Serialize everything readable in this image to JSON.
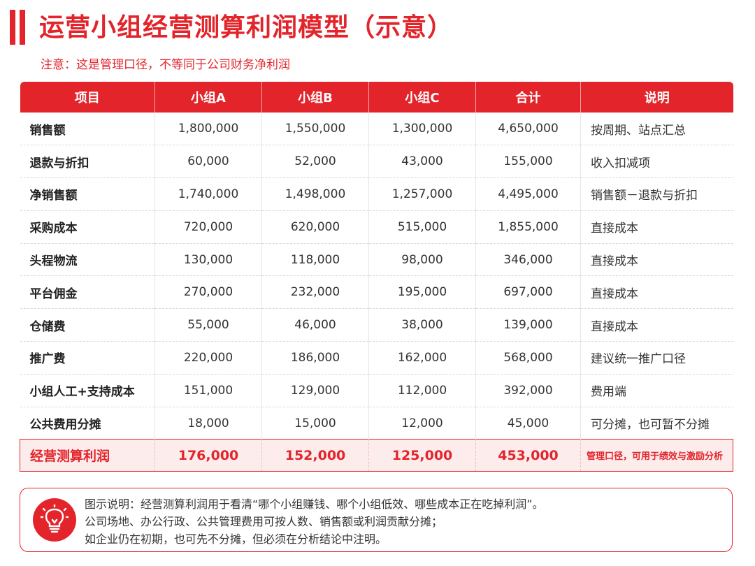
{
  "header": {
    "title": "运营小组经营测算利润模型（示意）",
    "subtitle": "注意：这是管理口径，不等同于公司财务净利润"
  },
  "colors": {
    "accent": "#e3242b",
    "total_row_bg": "#fdecec"
  },
  "table": {
    "headers": [
      "项目",
      "小组A",
      "小组B",
      "小组C",
      "合计",
      "说明"
    ],
    "rows": [
      [
        "销售额",
        "1,800,000",
        "1,550,000",
        "1,300,000",
        "4,650,000",
        "按周期、站点汇总"
      ],
      [
        "退款与折扣",
        "60,000",
        "52,000",
        "43,000",
        "155,000",
        "收入扣减项"
      ],
      [
        "净销售额",
        "1,740,000",
        "1,498,000",
        "1,257,000",
        "4,495,000",
        "销售额－退款与折扣"
      ],
      [
        "采购成本",
        "720,000",
        "620,000",
        "515,000",
        "1,855,000",
        "直接成本"
      ],
      [
        "头程物流",
        "130,000",
        "118,000",
        "98,000",
        "346,000",
        "直接成本"
      ],
      [
        "平台佣金",
        "270,000",
        "232,000",
        "195,000",
        "697,000",
        "直接成本"
      ],
      [
        "仓储费",
        "55,000",
        "46,000",
        "38,000",
        "139,000",
        "直接成本"
      ],
      [
        "推广费",
        "220,000",
        "186,000",
        "162,000",
        "568,000",
        "建议统一推广口径"
      ],
      [
        "小组人工+支持成本",
        "151,000",
        "129,000",
        "112,000",
        "392,000",
        "费用端"
      ],
      [
        "公共费用分摊",
        "18,000",
        "15,000",
        "12,000",
        "45,000",
        "可分摊，也可暂不分摊"
      ]
    ],
    "total": [
      "经营测算利润",
      "176,000",
      "152,000",
      "125,000",
      "453,000",
      "管理口径，可用于绩效与激励分析"
    ]
  },
  "note": {
    "icon": "lightbulb-icon",
    "lines": [
      "图示说明：经营测算利润用于看清“哪个小组赚钱、哪个小组低效、哪些成本正在吃掉利润”。",
      "公司场地、办公行政、公共管理费用可按人数、销售额或利润贡献分摊；",
      "如企业仍在初期，也可先不分摊，但必须在分析结论中注明。"
    ]
  }
}
